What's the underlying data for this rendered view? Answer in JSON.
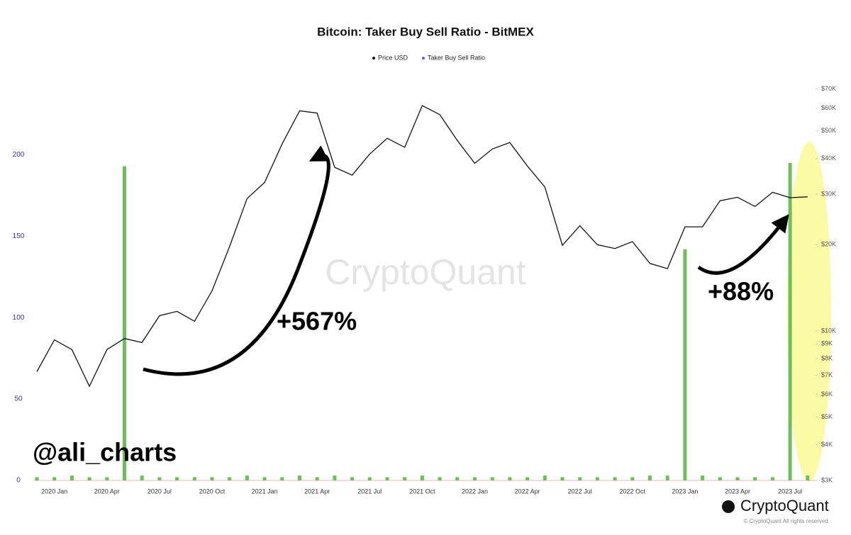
{
  "chart_data": {
    "type": "line",
    "title": "Bitcoin: Taker Buy Sell Ratio - BitMEX",
    "x": [
      "2019 Dec",
      "2020 Jan",
      "2020 Feb",
      "2020 Mar",
      "2020 Apr",
      "2020 May",
      "2020 Jun",
      "2020 Jul",
      "2020 Aug",
      "2020 Sep",
      "2020 Oct",
      "2020 Nov",
      "2020 Dec",
      "2021 Jan",
      "2021 Feb",
      "2021 Mar",
      "2021 Apr",
      "2021 May",
      "2021 Jun",
      "2021 Jul",
      "2021 Aug",
      "2021 Sep",
      "2021 Oct",
      "2021 Nov",
      "2021 Dec",
      "2022 Jan",
      "2022 Feb",
      "2022 Mar",
      "2022 Apr",
      "2022 May",
      "2022 Jun",
      "2022 Jul",
      "2022 Aug",
      "2022 Sep",
      "2022 Oct",
      "2022 Nov",
      "2022 Dec",
      "2023 Jan",
      "2023 Feb",
      "2023 Mar",
      "2023 Apr",
      "2023 May",
      "2023 Jun",
      "2023 Jul",
      "2023 Aug"
    ],
    "xticks": [
      "2020 Jan",
      "2020 Apr",
      "2020 Jul",
      "2020 Oct",
      "2021 Jan",
      "2021 Apr",
      "2021 Jul",
      "2021 Oct",
      "2022 Jan",
      "2022 Apr",
      "2022 Jul",
      "2022 Oct",
      "2023 Jan",
      "2023 Apr",
      "2023 Jul"
    ],
    "series": [
      {
        "name": "Price USD",
        "color": "#111111",
        "axis": "y2",
        "values": [
          7200,
          9300,
          8600,
          6400,
          8600,
          9400,
          9100,
          11300,
          11700,
          10800,
          13800,
          19700,
          29000,
          33000,
          45000,
          58800,
          57700,
          37300,
          35000,
          41500,
          47100,
          43800,
          61300,
          57000,
          46300,
          38500,
          43200,
          45500,
          37700,
          31800,
          19900,
          23300,
          20000,
          19400,
          20500,
          17200,
          16500,
          23100,
          23100,
          28500,
          29300,
          27200,
          30500,
          29200,
          29400
        ]
      },
      {
        "name": "Taker Buy Sell Ratio",
        "color": "#6cbf5a",
        "values": [
          2,
          2,
          3,
          2,
          2,
          193,
          3,
          2,
          2,
          2,
          2,
          2,
          3,
          2,
          2,
          3,
          2,
          3,
          2,
          2,
          2,
          2,
          3,
          2,
          2,
          2,
          2,
          2,
          2,
          3,
          2,
          2,
          2,
          2,
          2,
          3,
          3,
          142,
          3,
          2,
          2,
          2,
          2,
          195,
          3
        ]
      }
    ],
    "ylim": [
      0,
      245
    ],
    "yticks": [
      0,
      50,
      100,
      150,
      200
    ],
    "y2lim": [
      3000,
      74400
    ],
    "y2scale": "log",
    "y2ticks": [
      {
        "value": 3000,
        "label": "$3K"
      },
      {
        "value": 4000,
        "label": "$4K"
      },
      {
        "value": 5000,
        "label": "$5K"
      },
      {
        "value": 6000,
        "label": "$6K"
      },
      {
        "value": 7000,
        "label": "$7K"
      },
      {
        "value": 8000,
        "label": "$8K"
      },
      {
        "value": 9000,
        "label": "$9K"
      },
      {
        "value": 10000,
        "label": "$10K"
      },
      {
        "value": 20000,
        "label": "$20K"
      },
      {
        "value": 30000,
        "label": "$30K"
      },
      {
        "value": 40000,
        "label": "$40K"
      },
      {
        "value": 50000,
        "label": "$50K"
      },
      {
        "value": 60000,
        "label": "$60K"
      },
      {
        "value": 70000,
        "label": "$70K"
      }
    ],
    "annotations": [
      "+567%",
      "+88%",
      "@ali_charts"
    ],
    "watermark": "CryptoQuant",
    "brand": "CryptoQuant",
    "copyright": "© CryptoQuant All rights reserved."
  }
}
